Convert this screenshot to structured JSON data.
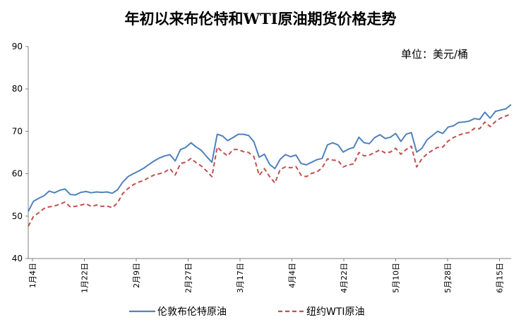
{
  "chart_data": {
    "type": "line",
    "title": "年初以来布伦特和WTI原油期货价格走势",
    "unit_label": "单位：美元/桶",
    "ylim": [
      40,
      90
    ],
    "yticks": [
      "40",
      "50",
      "60",
      "70",
      "80",
      "90"
    ],
    "xticks": [
      "1月4日",
      "1月22日",
      "2月9日",
      "2月27日",
      "3月17日",
      "4月4日",
      "4月22日",
      "5月10日",
      "5月28日",
      "6月15日"
    ],
    "grid": false,
    "legend_position": "bottom",
    "series": [
      {
        "name": "伦敦布伦特原油",
        "color": "#4f81bd",
        "style": "solid",
        "values": [
          51.1,
          53.5,
          54.2,
          54.8,
          55.9,
          55.5,
          56.1,
          56.4,
          55.1,
          55.0,
          55.6,
          55.8,
          55.5,
          55.7,
          55.6,
          55.7,
          55.4,
          56.2,
          58.0,
          59.3,
          60.0,
          60.6,
          61.3,
          62.2,
          63.0,
          63.7,
          64.2,
          64.5,
          63.0,
          65.7,
          66.2,
          67.3,
          66.3,
          65.5,
          64.0,
          62.7,
          69.3,
          68.9,
          67.8,
          68.5,
          69.3,
          69.3,
          69.0,
          67.5,
          63.9,
          64.6,
          62.2,
          61.2,
          63.4,
          64.5,
          64.0,
          64.4,
          62.4,
          62.1,
          62.7,
          63.3,
          63.6,
          66.8,
          67.3,
          66.8,
          65.1,
          65.8,
          66.2,
          68.6,
          67.3,
          67.1,
          68.5,
          69.2,
          68.3,
          68.6,
          69.5,
          67.6,
          69.3,
          69.7,
          65.1,
          66.0,
          68.0,
          69.0,
          70.0,
          69.5,
          71.0,
          71.3,
          72.1,
          72.2,
          72.4,
          73.0,
          72.8,
          74.5,
          73.1,
          74.7,
          75.0,
          75.3,
          76.3
        ]
      },
      {
        "name": "纽约WTI原油",
        "color": "#c0504d",
        "style": "dashed",
        "values": [
          47.6,
          49.9,
          50.8,
          51.8,
          52.2,
          52.4,
          52.8,
          53.3,
          52.2,
          52.3,
          52.6,
          52.9,
          52.3,
          52.6,
          52.3,
          52.4,
          52.0,
          53.1,
          55.3,
          56.5,
          57.4,
          58.0,
          58.4,
          59.1,
          59.7,
          60.0,
          60.4,
          61.2,
          59.7,
          62.4,
          62.7,
          63.6,
          62.6,
          61.8,
          60.6,
          59.3,
          66.3,
          65.1,
          64.2,
          65.7,
          65.7,
          65.2,
          65.0,
          64.0,
          59.6,
          61.2,
          59.3,
          57.8,
          61.0,
          61.6,
          61.4,
          61.7,
          59.6,
          59.3,
          60.1,
          60.4,
          61.4,
          63.5,
          63.2,
          63.1,
          61.6,
          62.1,
          62.3,
          65.0,
          64.2,
          64.4,
          65.0,
          65.6,
          64.9,
          65.1,
          66.0,
          64.6,
          65.7,
          66.5,
          61.6,
          63.5,
          64.7,
          65.5,
          66.2,
          66.3,
          67.7,
          68.5,
          69.1,
          69.5,
          69.7,
          70.7,
          70.6,
          72.2,
          71.1,
          72.3,
          73.1,
          73.6,
          74.1
        ]
      }
    ]
  }
}
